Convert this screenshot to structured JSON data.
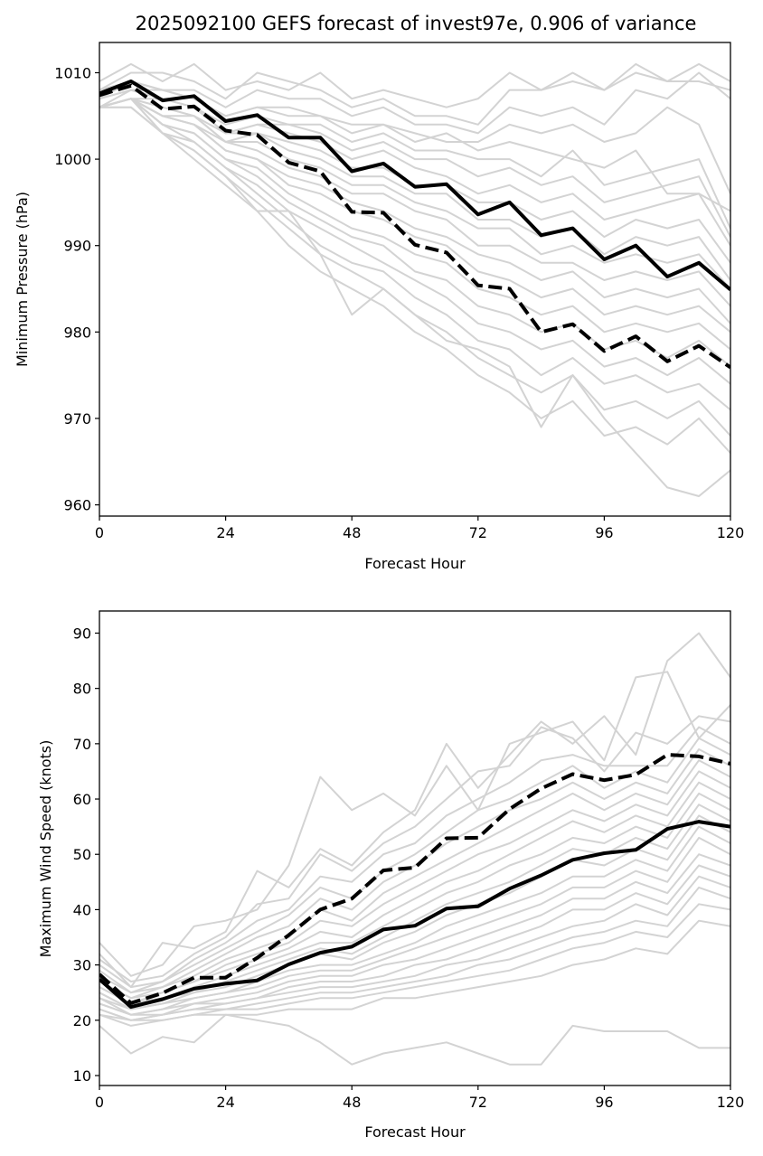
{
  "figure": {
    "title": "2025092100 GEFS forecast of invest97e, 0.906 of variance"
  },
  "colors": {
    "member": "#d3d3d3",
    "mean": "#000000",
    "axis": "#000000"
  },
  "chart_data": [
    {
      "type": "line",
      "title": "2025092100 GEFS forecast of invest97e, 0.906 of variance",
      "xlabel": "Forecast Hour",
      "ylabel": "Minimum Pressure (hPa)",
      "xlim": [
        0,
        120
      ],
      "ylim": [
        958.7,
        1013.5
      ],
      "xticks": [
        0,
        24,
        48,
        72,
        96,
        120
      ],
      "yticks": [
        960,
        970,
        980,
        990,
        1000,
        1010
      ],
      "grid": false,
      "x": [
        0,
        6,
        12,
        18,
        24,
        30,
        36,
        42,
        48,
        54,
        60,
        66,
        72,
        78,
        84,
        90,
        96,
        102,
        108,
        114,
        120
      ],
      "members": [
        [
          1009,
          1011,
          1009,
          1011,
          1008,
          1009,
          1008,
          1010,
          1007,
          1008,
          1007,
          1006,
          1007,
          1010,
          1008,
          1009,
          1008,
          1010,
          1009,
          1011,
          1009
        ],
        [
          1008,
          1010,
          1010,
          1009,
          1007,
          1010,
          1009,
          1008,
          1006,
          1007,
          1005,
          1005,
          1004,
          1008,
          1008,
          1010,
          1008,
          1011,
          1009,
          1009,
          1008
        ],
        [
          1008,
          1009,
          1008,
          1008,
          1006,
          1008,
          1007,
          1007,
          1005,
          1006,
          1004,
          1004,
          1003,
          1006,
          1005,
          1006,
          1004,
          1008,
          1007,
          1010,
          1007
        ],
        [
          1007,
          1009,
          1008,
          1007,
          1005,
          1006,
          1006,
          1005,
          1004,
          1004,
          1003,
          1002,
          1002,
          1004,
          1003,
          1004,
          1002,
          1003,
          1006,
          1004,
          996
        ],
        [
          1007,
          1008,
          1008,
          1007,
          1005,
          1006,
          1005,
          1005,
          1003,
          1004,
          1002,
          1003,
          1001,
          1002,
          1001,
          1000,
          999,
          1001,
          996,
          996,
          994
        ],
        [
          1007,
          1008,
          1007,
          1006,
          1004,
          1005,
          1004,
          1004,
          1002,
          1003,
          1001,
          1001,
          1000,
          1000,
          998,
          1001,
          997,
          998,
          999,
          1000,
          992
        ],
        [
          1006,
          1008,
          1007,
          1006,
          1003,
          1004,
          1004,
          1003,
          1001,
          1002,
          1000,
          1000,
          998,
          999,
          997,
          998,
          995,
          996,
          997,
          998,
          991
        ],
        [
          1006,
          1007,
          1007,
          1006,
          1003,
          1004,
          1003,
          1002,
          1000,
          1001,
          999,
          998,
          996,
          997,
          995,
          996,
          993,
          994,
          995,
          996,
          990
        ],
        [
          1006,
          1007,
          1006,
          1005,
          1003,
          1003,
          1002,
          1001,
          999,
          999,
          997,
          997,
          995,
          995,
          993,
          994,
          991,
          993,
          992,
          993,
          988
        ],
        [
          1006,
          1007,
          1006,
          1005,
          1002,
          1003,
          1001,
          1000,
          998,
          998,
          996,
          996,
          993,
          993,
          991,
          992,
          989,
          991,
          990,
          991,
          986
        ],
        [
          1006,
          1007,
          1005,
          1005,
          1002,
          1002,
          1000,
          999,
          997,
          997,
          995,
          994,
          992,
          992,
          989,
          990,
          988,
          989,
          988,
          989,
          985
        ],
        [
          1006,
          1007,
          1005,
          1004,
          1002,
          1001,
          999,
          998,
          996,
          996,
          994,
          993,
          990,
          990,
          988,
          988,
          986,
          987,
          986,
          987,
          983
        ],
        [
          1006,
          1007,
          1005,
          1004,
          1001,
          1000,
          998,
          997,
          995,
          994,
          992,
          991,
          989,
          988,
          986,
          987,
          984,
          985,
          984,
          985,
          981
        ],
        [
          1006,
          1007,
          1005,
          1004,
          1001,
          1000,
          997,
          996,
          994,
          993,
          991,
          990,
          987,
          986,
          984,
          985,
          982,
          983,
          982,
          983,
          980
        ],
        [
          1006,
          1007,
          1004,
          1003,
          1000,
          999,
          996,
          994,
          992,
          991,
          989,
          988,
          985,
          984,
          982,
          983,
          980,
          981,
          980,
          981,
          978
        ],
        [
          1006,
          1007,
          1004,
          1003,
          1000,
          998,
          995,
          993,
          991,
          990,
          987,
          986,
          983,
          982,
          980,
          981,
          978,
          979,
          977,
          979,
          976
        ],
        [
          1006,
          1007,
          1004,
          1002,
          999,
          997,
          994,
          992,
          990,
          988,
          986,
          984,
          981,
          980,
          978,
          979,
          976,
          977,
          975,
          977,
          974
        ],
        [
          1006,
          1007,
          1003,
          1002,
          999,
          996,
          993,
          990,
          988,
          987,
          984,
          982,
          979,
          978,
          975,
          977,
          974,
          975,
          973,
          974,
          971
        ],
        [
          1006,
          1007,
          1003,
          1001,
          998,
          995,
          992,
          989,
          987,
          985,
          982,
          980,
          977,
          975,
          973,
          975,
          971,
          972,
          970,
          972,
          968
        ],
        [
          1006,
          1006,
          1003,
          1001,
          998,
          994,
          990,
          987,
          985,
          983,
          980,
          978,
          975,
          973,
          970,
          972,
          968,
          969,
          967,
          970,
          966
        ],
        [
          1006,
          1006,
          1003,
          1000,
          997,
          994,
          994,
          989,
          982,
          985,
          982,
          979,
          978,
          976,
          969,
          975,
          970,
          966,
          962,
          961,
          964
        ]
      ],
      "series": [
        {
          "style": "solid",
          "values": [
            1007.6,
            1009.0,
            1006.8,
            1007.3,
            1004.4,
            1005.1,
            1002.5,
            1002.5,
            998.6,
            999.5,
            996.8,
            997.1,
            993.6,
            995.0,
            991.2,
            992.0,
            988.4,
            990.0,
            986.4,
            988.0,
            984.9
          ]
        },
        {
          "style": "dashed",
          "values": [
            1007.4,
            1008.5,
            1005.8,
            1006.1,
            1003.3,
            1002.8,
            999.6,
            998.6,
            993.9,
            993.8,
            990.1,
            989.2,
            985.4,
            985.0,
            980.0,
            980.9,
            977.8,
            979.5,
            976.6,
            978.4,
            975.9
          ]
        }
      ]
    },
    {
      "type": "line",
      "xlabel": "Forecast Hour",
      "ylabel": "Maximum Wind Speed (knots)",
      "xlim": [
        0,
        120
      ],
      "ylim": [
        8.2,
        94.0
      ],
      "xticks": [
        0,
        24,
        48,
        72,
        96,
        120
      ],
      "yticks": [
        10,
        20,
        30,
        40,
        50,
        60,
        70,
        80,
        90
      ],
      "grid": false,
      "x": [
        0,
        6,
        12,
        18,
        24,
        30,
        36,
        42,
        48,
        54,
        60,
        66,
        72,
        78,
        84,
        90,
        96,
        102,
        108,
        114,
        120
      ],
      "members": [
        [
          34,
          28,
          30,
          37,
          38,
          40,
          48,
          64,
          58,
          61,
          57,
          66,
          58,
          70,
          72,
          74,
          67,
          82,
          83,
          71,
          77
        ],
        [
          32,
          26,
          34,
          33,
          36,
          47,
          44,
          51,
          48,
          54,
          58,
          70,
          62,
          68,
          74,
          70,
          75,
          68,
          85,
          90,
          82
        ],
        [
          31,
          27,
          28,
          32,
          35,
          41,
          42,
          50,
          47,
          52,
          55,
          60,
          65,
          66,
          73,
          71,
          65,
          72,
          70,
          75,
          74
        ],
        [
          30,
          26,
          27,
          31,
          34,
          38,
          40,
          46,
          45,
          50,
          52,
          57,
          60,
          63,
          67,
          68,
          66,
          66,
          66,
          73,
          70
        ],
        [
          29,
          25,
          27,
          30,
          33,
          36,
          39,
          44,
          42,
          47,
          50,
          54,
          58,
          60,
          63,
          66,
          62,
          65,
          63,
          71,
          68
        ],
        [
          28,
          25,
          26,
          29,
          32,
          35,
          37,
          42,
          40,
          45,
          48,
          52,
          55,
          58,
          60,
          63,
          60,
          63,
          61,
          69,
          66
        ],
        [
          27,
          24,
          26,
          28,
          31,
          33,
          35,
          40,
          38,
          43,
          46,
          49,
          52,
          55,
          58,
          61,
          58,
          61,
          59,
          67,
          64
        ],
        [
          27,
          24,
          25,
          27,
          30,
          32,
          34,
          38,
          37,
          41,
          44,
          47,
          50,
          52,
          55,
          58,
          56,
          59,
          57,
          65,
          62
        ],
        [
          26,
          23,
          25,
          27,
          29,
          31,
          33,
          36,
          35,
          39,
          42,
          45,
          47,
          50,
          53,
          56,
          54,
          57,
          55,
          63,
          60
        ],
        [
          26,
          23,
          24,
          26,
          28,
          30,
          32,
          34,
          34,
          37,
          40,
          43,
          45,
          48,
          50,
          53,
          52,
          55,
          53,
          61,
          58
        ],
        [
          25,
          22,
          24,
          25,
          27,
          29,
          31,
          33,
          32,
          35,
          38,
          41,
          43,
          45,
          48,
          51,
          50,
          53,
          51,
          59,
          56
        ],
        [
          25,
          22,
          23,
          25,
          26,
          28,
          30,
          32,
          31,
          34,
          36,
          39,
          41,
          43,
          46,
          49,
          48,
          51,
          49,
          57,
          54
        ],
        [
          24,
          22,
          23,
          24,
          25,
          27,
          29,
          30,
          30,
          32,
          34,
          37,
          39,
          41,
          43,
          46,
          46,
          49,
          47,
          55,
          52
        ],
        [
          24,
          21,
          22,
          24,
          25,
          26,
          28,
          29,
          29,
          31,
          33,
          35,
          37,
          39,
          41,
          44,
          44,
          47,
          45,
          53,
          50
        ],
        [
          23,
          21,
          22,
          23,
          24,
          25,
          27,
          28,
          28,
          30,
          31,
          33,
          35,
          37,
          39,
          42,
          42,
          45,
          43,
          50,
          48
        ],
        [
          23,
          21,
          21,
          23,
          23,
          24,
          26,
          27,
          27,
          28,
          30,
          31,
          33,
          35,
          37,
          40,
          40,
          43,
          41,
          48,
          46
        ],
        [
          22,
          20,
          21,
          22,
          23,
          24,
          25,
          26,
          26,
          27,
          28,
          30,
          31,
          33,
          35,
          37,
          38,
          41,
          39,
          46,
          44
        ],
        [
          22,
          20,
          21,
          22,
          22,
          23,
          24,
          25,
          25,
          26,
          27,
          28,
          30,
          31,
          33,
          35,
          36,
          38,
          37,
          44,
          42
        ],
        [
          21,
          20,
          20,
          21,
          22,
          22,
          23,
          24,
          24,
          25,
          26,
          27,
          28,
          29,
          31,
          33,
          34,
          36,
          35,
          41,
          40
        ],
        [
          21,
          19,
          20,
          21,
          21,
          21,
          22,
          22,
          22,
          24,
          24,
          25,
          26,
          27,
          28,
          30,
          31,
          33,
          32,
          38,
          37
        ],
        [
          19,
          14,
          17,
          16,
          21,
          20,
          19,
          16,
          12,
          14,
          15,
          16,
          14,
          12,
          12,
          19,
          18,
          18,
          18,
          15,
          15
        ]
      ],
      "series": [
        {
          "style": "solid",
          "values": [
            27.4,
            22.4,
            23.8,
            25.7,
            26.6,
            27.2,
            30.1,
            32.2,
            33.3,
            36.4,
            37.1,
            40.2,
            40.6,
            43.8,
            46.2,
            49.0,
            50.2,
            50.8,
            54.6,
            55.9,
            55.0
          ]
        },
        {
          "style": "dashed",
          "values": [
            28.3,
            23.1,
            24.9,
            27.7,
            27.7,
            31.3,
            35.4,
            40.0,
            42.0,
            47.1,
            47.6,
            52.9,
            53.0,
            58.2,
            61.9,
            64.5,
            63.4,
            64.4,
            68.0,
            67.7,
            66.4
          ]
        }
      ]
    }
  ]
}
